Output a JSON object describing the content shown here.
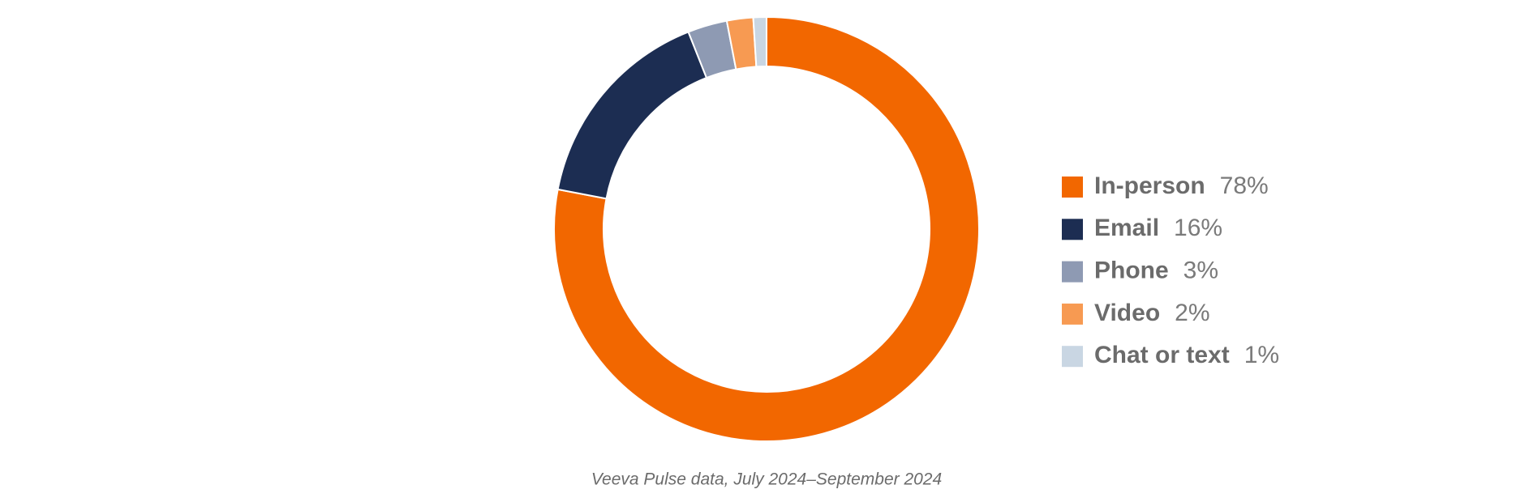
{
  "chart_data": {
    "type": "pie",
    "categories": [
      "In-person",
      "Email",
      "Phone",
      "Video",
      "Chat or text"
    ],
    "values": [
      78,
      16,
      3,
      2,
      1
    ],
    "value_labels": [
      "78%",
      "16%",
      "3%",
      "2%",
      "1%"
    ],
    "colors": [
      "#f26700",
      "#1c2d52",
      "#8e9ab3",
      "#f79a52",
      "#c9d6e3"
    ],
    "caption": "Veeva Pulse data, July 2024–September 2024",
    "legend": "right"
  }
}
